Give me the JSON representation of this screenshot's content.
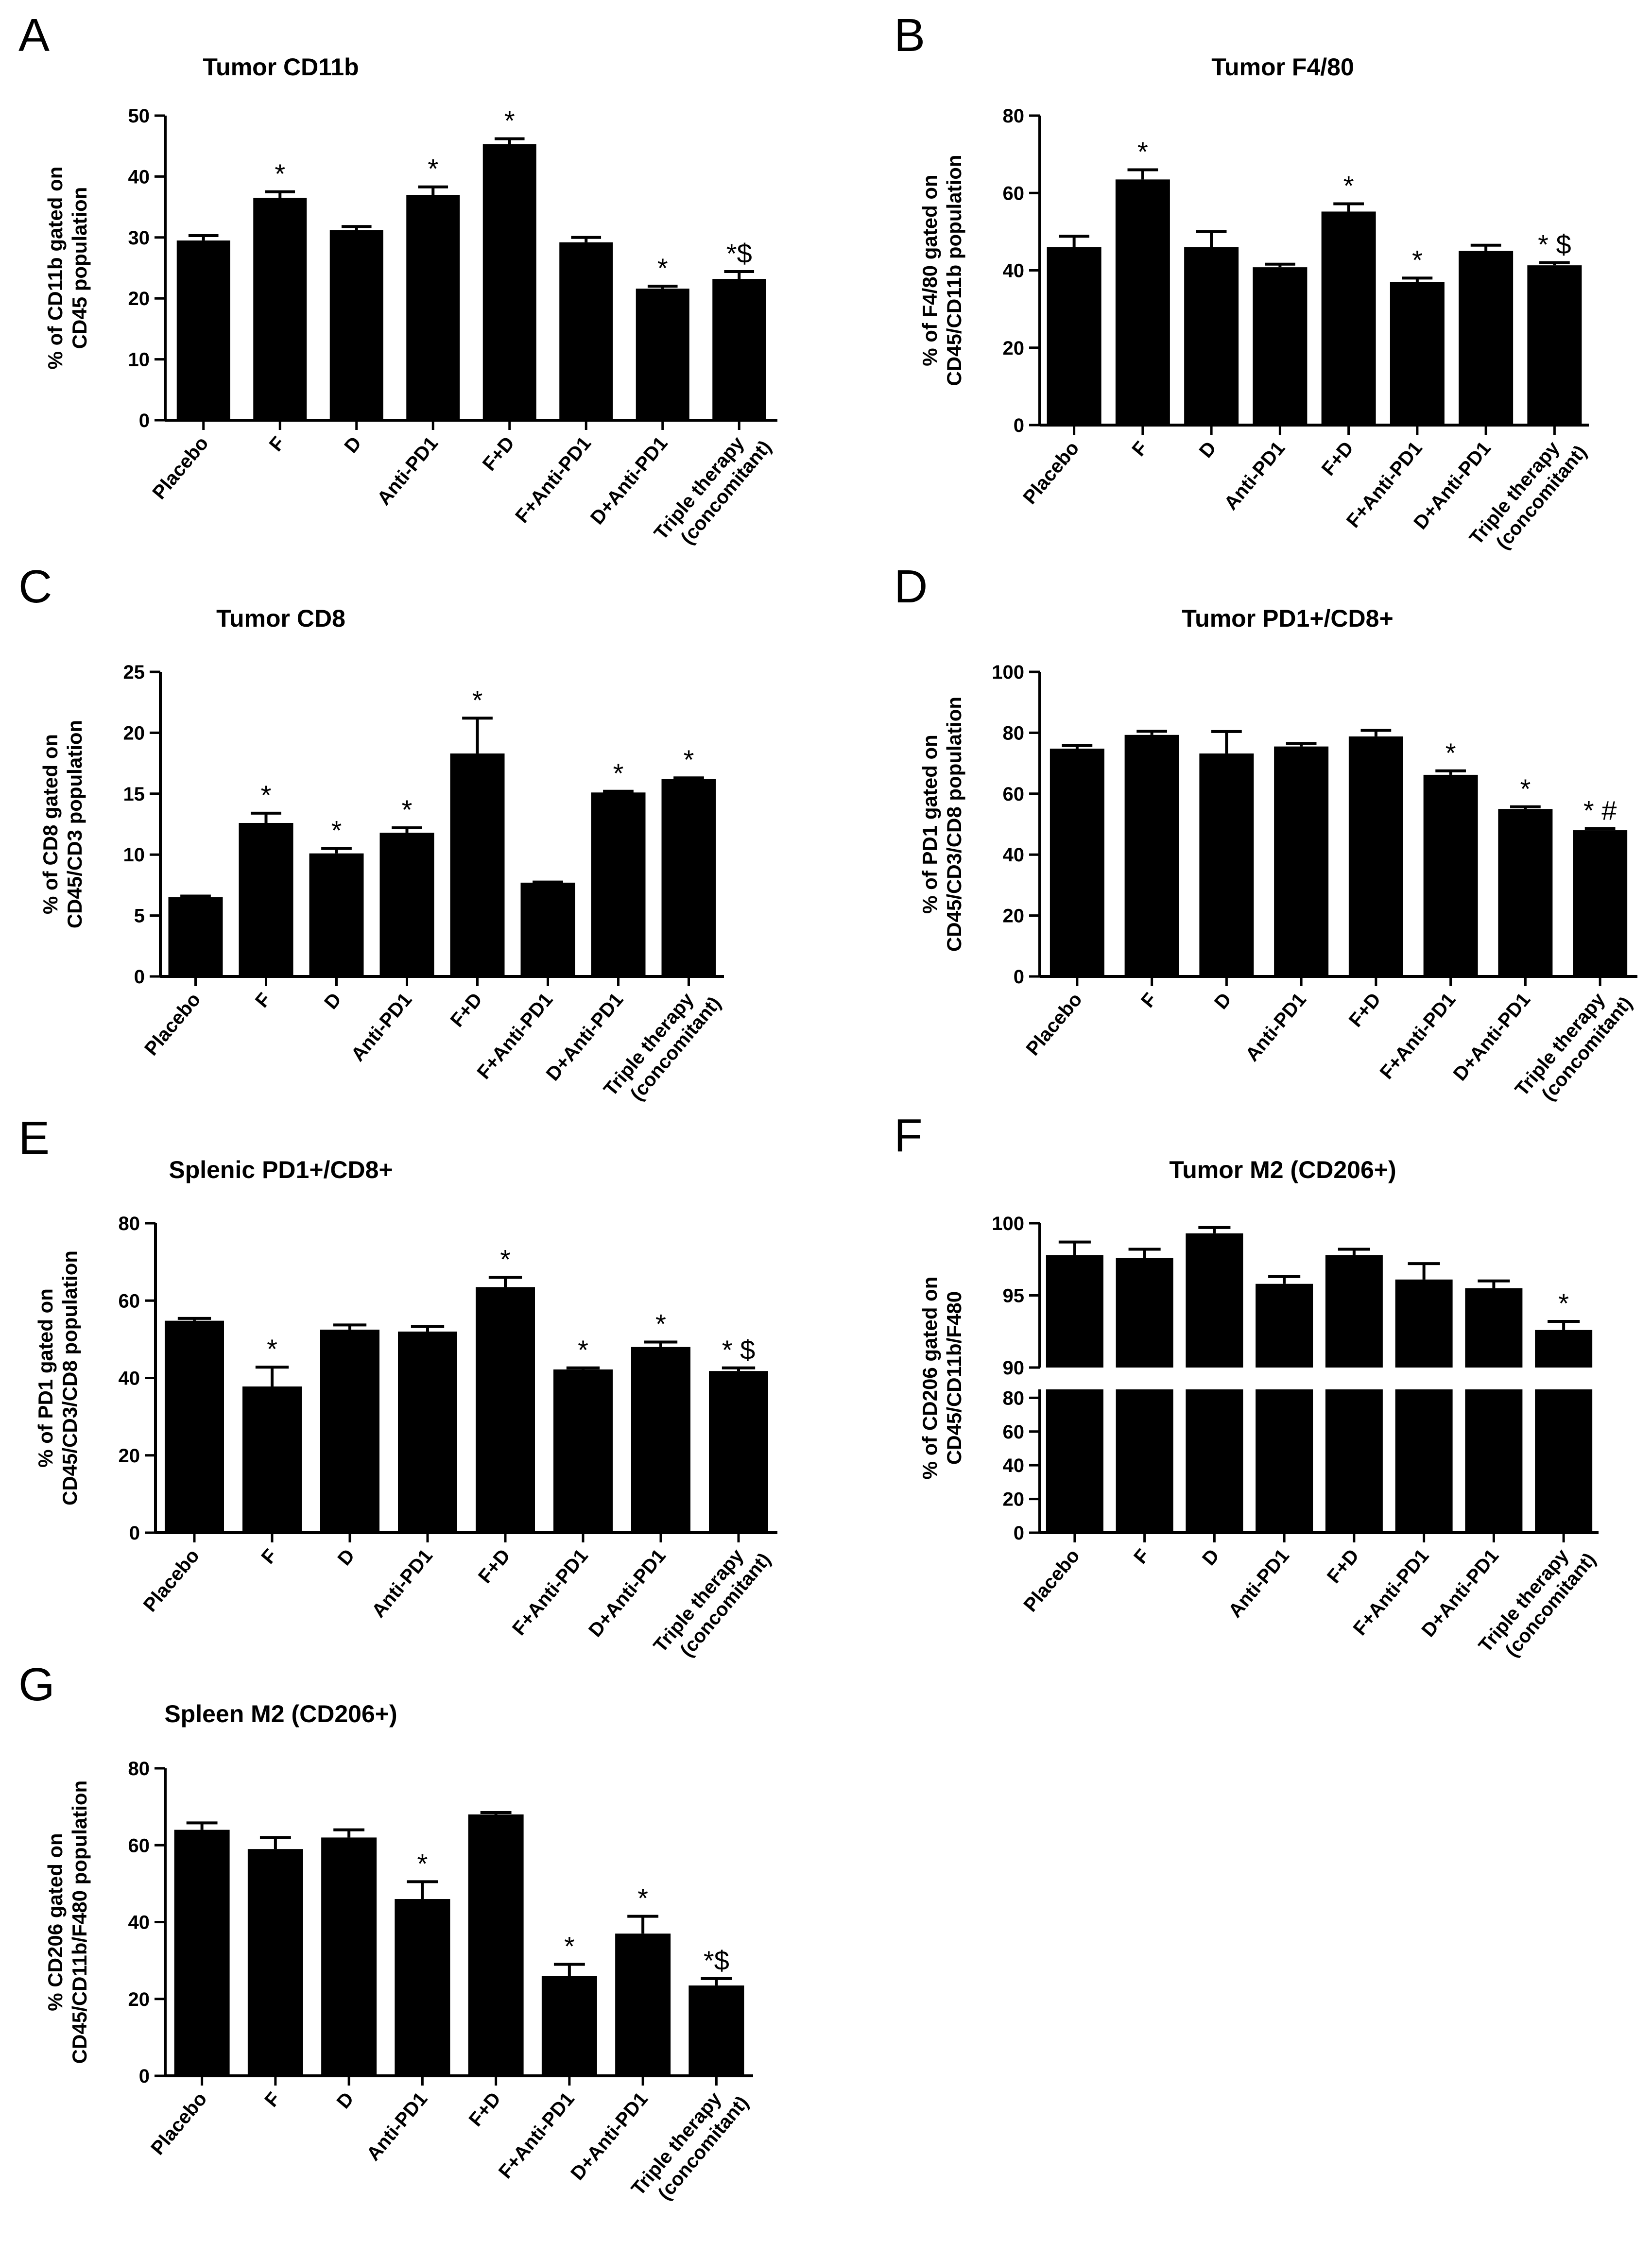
{
  "colors": {
    "bar": "#000000",
    "axis": "#000000",
    "background": "#ffffff"
  },
  "categories": [
    "Placebo",
    "F",
    "D",
    "Anti-PD1",
    "F+D",
    "F+Anti-PD1",
    "D+Anti-PD1",
    "Triple therapy|(concomitant)"
  ],
  "chart_data": [
    {
      "panel": "A",
      "type": "bar",
      "title": "Tumor CD11b",
      "ylabel": [
        "% of CD11b gated on",
        "CD45 population"
      ],
      "ylim": [
        0,
        50
      ],
      "ticks": [
        0,
        10,
        20,
        30,
        40,
        50
      ],
      "categories": [
        "Placebo",
        "F",
        "D",
        "Anti-PD1",
        "F+D",
        "F+Anti-PD1",
        "D+Anti-PD1",
        "Triple therapy (concomitant)"
      ],
      "values": [
        29.5,
        36.5,
        31.2,
        37.0,
        45.3,
        29.2,
        21.6,
        23.2
      ],
      "errors": [
        0.8,
        1.0,
        0.6,
        1.3,
        0.9,
        0.8,
        0.4,
        1.2
      ],
      "annotations": [
        "",
        "*",
        "",
        "*",
        "*",
        "",
        "*",
        "*$"
      ]
    },
    {
      "panel": "B",
      "type": "bar",
      "title": "Tumor F4/80",
      "ylabel": [
        "% of F4/80 gated on",
        "CD45/CD11b population"
      ],
      "ylim": [
        0,
        80
      ],
      "ticks": [
        0,
        20,
        40,
        60,
        80
      ],
      "categories": [
        "Placebo",
        "F",
        "D",
        "Anti-PD1",
        "F+D",
        "F+Anti-PD1",
        "D+Anti-PD1",
        "Triple therapy (concomitant)"
      ],
      "values": [
        46.0,
        63.5,
        46.0,
        40.8,
        55.2,
        37.0,
        45.0,
        41.3
      ],
      "errors": [
        2.8,
        2.5,
        4.0,
        0.8,
        2.0,
        1.0,
        1.5,
        0.7
      ],
      "annotations": [
        "",
        "*",
        "",
        "",
        "*",
        "*",
        "",
        "* $"
      ]
    },
    {
      "panel": "C",
      "type": "bar",
      "title": "Tumor CD8",
      "ylabel": [
        "% of CD8 gated on",
        "CD45/CD3 population"
      ],
      "ylim": [
        0,
        25
      ],
      "ticks": [
        0,
        5,
        10,
        15,
        20,
        25
      ],
      "categories": [
        "Placebo",
        "F",
        "D",
        "Anti-PD1",
        "F+D",
        "F+Anti-PD1",
        "D+Anti-PD1",
        "Triple therapy (concomitant)"
      ],
      "values": [
        6.5,
        12.6,
        10.1,
        11.8,
        18.3,
        7.7,
        15.1,
        16.2
      ],
      "errors": [
        0.1,
        0.8,
        0.4,
        0.4,
        2.9,
        0.05,
        0.1,
        0.1
      ],
      "annotations": [
        "",
        "*",
        "*",
        "*",
        "*",
        "",
        "*",
        "*"
      ]
    },
    {
      "panel": "D",
      "type": "bar",
      "title": "Tumor PD1+/CD8+",
      "ylabel": [
        "% of PD1 gated on",
        "CD45/CD3/CD8 population"
      ],
      "ylim": [
        0,
        100
      ],
      "ticks": [
        0,
        20,
        40,
        60,
        80,
        100
      ],
      "categories": [
        "Placebo",
        "F",
        "D",
        "Anti-PD1",
        "F+D",
        "F+Anti-PD1",
        "D+Anti-PD1",
        "Triple therapy (concomitant)"
      ],
      "values": [
        74.8,
        79.3,
        73.2,
        75.5,
        78.8,
        66.2,
        55.0,
        48.0
      ],
      "errors": [
        1.0,
        1.2,
        7.2,
        1.0,
        2.0,
        1.3,
        0.7,
        0.6
      ],
      "annotations": [
        "",
        "",
        "",
        "",
        "",
        "*",
        "*",
        "* #"
      ]
    },
    {
      "panel": "E",
      "type": "bar",
      "title": "Splenic PD1+/CD8+",
      "ylabel": [
        "% of PD1 gated on",
        "CD45/CD3/CD8 population"
      ],
      "ylim": [
        0,
        80
      ],
      "ticks": [
        0,
        20,
        40,
        60,
        80
      ],
      "categories": [
        "Placebo",
        "F",
        "D",
        "Anti-PD1",
        "F+D",
        "F+Anti-PD1",
        "D+Anti-PD1",
        "Triple therapy (concomitant)"
      ],
      "values": [
        54.8,
        37.8,
        52.5,
        52.0,
        63.5,
        42.2,
        48.0,
        41.8
      ],
      "errors": [
        0.6,
        5.0,
        1.2,
        1.3,
        2.5,
        0.4,
        1.3,
        0.8
      ],
      "annotations": [
        "",
        "*",
        "",
        "",
        "*",
        "*",
        "*",
        "* $"
      ]
    },
    {
      "panel": "F",
      "type": "bar",
      "title": "Tumor M2 (CD206+)",
      "broken_axis": true,
      "ylabel": [
        "% of CD206 gated on",
        "CD45/CD11b/F480"
      ],
      "ylim_lower": [
        0,
        85
      ],
      "ticks_lower": [
        0,
        20,
        40,
        60,
        80
      ],
      "ylim_upper": [
        90,
        100
      ],
      "ticks_upper": [
        90,
        95,
        100
      ],
      "categories": [
        "Placebo",
        "F",
        "D",
        "Anti-PD1",
        "F+D",
        "F+Anti-PD1",
        "D+Anti-PD1",
        "Triple therapy (concomitant)"
      ],
      "values": [
        97.8,
        97.6,
        99.3,
        95.8,
        97.8,
        96.1,
        95.5,
        92.6
      ],
      "errors": [
        0.9,
        0.6,
        0.4,
        0.5,
        0.4,
        1.1,
        0.5,
        0.6
      ],
      "annotations": [
        "",
        "",
        "",
        "",
        "",
        "",
        "",
        "*"
      ]
    },
    {
      "panel": "G",
      "type": "bar",
      "title": "Spleen M2 (CD206+)",
      "ylabel": [
        "% CD206 gated on",
        "CD45/CD11b/F480 population"
      ],
      "ylim": [
        0,
        80
      ],
      "ticks": [
        0,
        20,
        40,
        60,
        80
      ],
      "categories": [
        "Placebo",
        "F",
        "D",
        "Anti-PD1",
        "F+D",
        "F+Anti-PD1",
        "D+Anti-PD1",
        "Triple therapy (concomitant)"
      ],
      "values": [
        64.0,
        59.0,
        62.0,
        46.0,
        68.0,
        26.0,
        37.0,
        23.5
      ],
      "errors": [
        1.8,
        3.0,
        2.0,
        4.5,
        0.5,
        3.0,
        4.5,
        1.8
      ],
      "annotations": [
        "",
        "",
        "",
        "*",
        "",
        "*",
        "*",
        "*$"
      ]
    }
  ]
}
